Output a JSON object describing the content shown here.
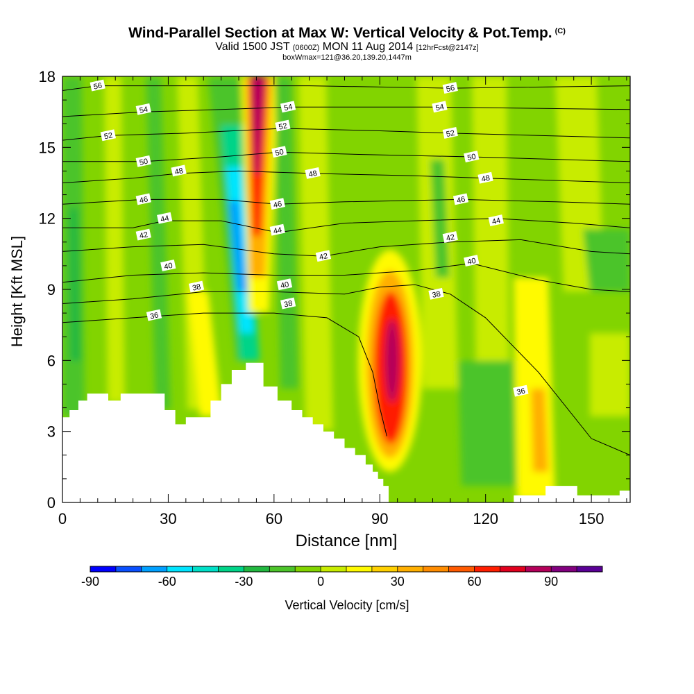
{
  "title": "Wind-Parallel Section at Max W: Vertical Velocity & Pot.Temp.",
  "title_mark": "(C)",
  "subtitle_main": "Valid 1500 JST",
  "subtitle_zulu": "(0600Z)",
  "subtitle_date": "MON 11 Aug 2014",
  "subtitle_fcst": "[12hrFcst@2147z]",
  "subtitle2": "boxWmax=121@36.20,139.20,1447m",
  "chart_data": {
    "type": "heatmap",
    "xlabel": "Distance [nm]",
    "ylabel": "Height [Kft MSL]",
    "xlim": [
      0,
      161
    ],
    "ylim": [
      0,
      18
    ],
    "x_ticks": [
      "0",
      "30",
      "60",
      "90",
      "120",
      "150"
    ],
    "x_tick_values": [
      0,
      30,
      60,
      90,
      120,
      150
    ],
    "y_ticks": [
      "0",
      "3",
      "6",
      "9",
      "12",
      "15",
      "18"
    ],
    "y_tick_values": [
      0,
      3,
      6,
      9,
      12,
      15,
      18
    ],
    "colorbar": {
      "label": "Vertical Velocity [cm/s]",
      "ticks": [
        "-90",
        "-60",
        "-30",
        "0",
        "30",
        "60",
        "90"
      ],
      "tick_values": [
        -90,
        -60,
        -30,
        0,
        30,
        60,
        90
      ],
      "min": -90,
      "max": 110,
      "step": 10,
      "colors": [
        "#0000ff",
        "#0a50ff",
        "#00a0ff",
        "#00e5ff",
        "#00e0c8",
        "#00d488",
        "#22b840",
        "#4cc42a",
        "#82d400",
        "#c8ec00",
        "#fffa00",
        "#ffd000",
        "#ffaf00",
        "#ff8c00",
        "#ff5a00",
        "#ff1e00",
        "#e1001e",
        "#b4005a",
        "#82007f",
        "#5a0096"
      ]
    },
    "terrain": [
      [
        0,
        3.6
      ],
      [
        2,
        3.6
      ],
      [
        2,
        3.9
      ],
      [
        4.5,
        3.9
      ],
      [
        4.5,
        4.3
      ],
      [
        7,
        4.3
      ],
      [
        7,
        4.6
      ],
      [
        13,
        4.6
      ],
      [
        13,
        4.3
      ],
      [
        16.5,
        4.3
      ],
      [
        16.5,
        4.6
      ],
      [
        29,
        4.6
      ],
      [
        29,
        3.9
      ],
      [
        32,
        3.9
      ],
      [
        32,
        3.3
      ],
      [
        35,
        3.3
      ],
      [
        35,
        3.6
      ],
      [
        42,
        3.6
      ],
      [
        42,
        4.3
      ],
      [
        45,
        4.3
      ],
      [
        45,
        5.0
      ],
      [
        48,
        5.0
      ],
      [
        48,
        5.6
      ],
      [
        52,
        5.6
      ],
      [
        52,
        5.9
      ],
      [
        57,
        5.9
      ],
      [
        57,
        4.9
      ],
      [
        61,
        4.9
      ],
      [
        61,
        4.3
      ],
      [
        65,
        4.3
      ],
      [
        65,
        3.9
      ],
      [
        68,
        3.9
      ],
      [
        68,
        3.6
      ],
      [
        71,
        3.6
      ],
      [
        71,
        3.3
      ],
      [
        74,
        3.3
      ],
      [
        74,
        3.0
      ],
      [
        77,
        3.0
      ],
      [
        77,
        2.7
      ],
      [
        80,
        2.7
      ],
      [
        80,
        2.3
      ],
      [
        83,
        2.3
      ],
      [
        83,
        2.0
      ],
      [
        86,
        2.0
      ],
      [
        86,
        1.6
      ],
      [
        88,
        1.6
      ],
      [
        88,
        1.3
      ],
      [
        89.5,
        1.3
      ],
      [
        89.5,
        1.0
      ],
      [
        91,
        1.0
      ],
      [
        91,
        0.7
      ],
      [
        92.5,
        0.7
      ],
      [
        92.5,
        0
      ],
      [
        0,
        0
      ]
    ],
    "terrain_right": [
      [
        128,
        0
      ],
      [
        128,
        0.3
      ],
      [
        137,
        0.3
      ],
      [
        137,
        0.7
      ],
      [
        146,
        0.7
      ],
      [
        146,
        0.3
      ],
      [
        158,
        0.3
      ],
      [
        158,
        0.5
      ],
      [
        161,
        0.5
      ],
      [
        161,
        0
      ]
    ],
    "isentrope_labels": [
      {
        "text": "56",
        "x": 10,
        "y": 17.6
      },
      {
        "text": "54",
        "x": 23,
        "y": 16.6
      },
      {
        "text": "52",
        "x": 13,
        "y": 15.5
      },
      {
        "text": "50",
        "x": 23,
        "y": 14.4
      },
      {
        "text": "48",
        "x": 33,
        "y": 14.0
      },
      {
        "text": "46",
        "x": 23,
        "y": 12.8
      },
      {
        "text": "44",
        "x": 29,
        "y": 12.0
      },
      {
        "text": "42",
        "x": 23,
        "y": 11.3
      },
      {
        "text": "40",
        "x": 30,
        "y": 10.0
      },
      {
        "text": "38",
        "x": 38,
        "y": 9.1
      },
      {
        "text": "36",
        "x": 26,
        "y": 7.9
      },
      {
        "text": "54",
        "x": 64,
        "y": 16.7
      },
      {
        "text": "52",
        "x": 62.5,
        "y": 15.9
      },
      {
        "text": "50",
        "x": 61.5,
        "y": 14.8
      },
      {
        "text": "48",
        "x": 71,
        "y": 13.9
      },
      {
        "text": "46",
        "x": 61,
        "y": 12.6
      },
      {
        "text": "44",
        "x": 61,
        "y": 11.5
      },
      {
        "text": "42",
        "x": 74,
        "y": 10.4
      },
      {
        "text": "40",
        "x": 63,
        "y": 9.2
      },
      {
        "text": "38",
        "x": 64,
        "y": 8.4
      },
      {
        "text": "56",
        "x": 110,
        "y": 17.5
      },
      {
        "text": "54",
        "x": 107,
        "y": 16.7
      },
      {
        "text": "52",
        "x": 110,
        "y": 15.6
      },
      {
        "text": "50",
        "x": 116,
        "y": 14.6
      },
      {
        "text": "48",
        "x": 120,
        "y": 13.7
      },
      {
        "text": "46",
        "x": 113,
        "y": 12.8
      },
      {
        "text": "44",
        "x": 123,
        "y": 11.9
      },
      {
        "text": "42",
        "x": 110,
        "y": 11.2
      },
      {
        "text": "40",
        "x": 116,
        "y": 10.2
      },
      {
        "text": "38",
        "x": 106,
        "y": 8.8
      },
      {
        "text": "36",
        "x": 130,
        "y": 4.7
      }
    ],
    "isentropes": [
      {
        "level": 36,
        "pts": [
          [
            0,
            7.6
          ],
          [
            20,
            7.8
          ],
          [
            40,
            8.0
          ],
          [
            60,
            8.0
          ],
          [
            75,
            7.8
          ],
          [
            84,
            7.0
          ],
          [
            88,
            5.5
          ],
          [
            90,
            4.0
          ],
          [
            92,
            2.8
          ]
        ]
      },
      {
        "level": 38,
        "pts": [
          [
            0,
            8.4
          ],
          [
            20,
            8.6
          ],
          [
            40,
            8.9
          ],
          [
            60,
            8.9
          ],
          [
            80,
            8.8
          ],
          [
            90,
            9.1
          ],
          [
            100,
            9.2
          ],
          [
            110,
            8.8
          ],
          [
            120,
            7.8
          ],
          [
            135,
            5.5
          ],
          [
            150,
            2.7
          ],
          [
            161,
            2.0
          ]
        ]
      },
      {
        "level": 40,
        "pts": [
          [
            0,
            9.3
          ],
          [
            20,
            9.6
          ],
          [
            40,
            9.7
          ],
          [
            60,
            9.6
          ],
          [
            80,
            9.6
          ],
          [
            100,
            9.8
          ],
          [
            116,
            10.1
          ],
          [
            135,
            9.4
          ],
          [
            150,
            9.0
          ],
          [
            161,
            8.9
          ]
        ]
      },
      {
        "level": 42,
        "pts": [
          [
            0,
            10.6
          ],
          [
            20,
            10.8
          ],
          [
            40,
            10.9
          ],
          [
            60,
            10.5
          ],
          [
            74,
            10.4
          ],
          [
            90,
            10.8
          ],
          [
            110,
            11.0
          ],
          [
            130,
            11.1
          ],
          [
            150,
            10.6
          ],
          [
            161,
            10.5
          ]
        ]
      },
      {
        "level": 44,
        "pts": [
          [
            0,
            11.6
          ],
          [
            20,
            11.6
          ],
          [
            29,
            11.9
          ],
          [
            45,
            11.9
          ],
          [
            61,
            11.4
          ],
          [
            80,
            11.8
          ],
          [
            100,
            11.9
          ],
          [
            123,
            12.0
          ],
          [
            145,
            11.8
          ],
          [
            161,
            11.6
          ]
        ]
      },
      {
        "level": 46,
        "pts": [
          [
            0,
            12.6
          ],
          [
            23,
            12.8
          ],
          [
            45,
            12.8
          ],
          [
            61,
            12.6
          ],
          [
            80,
            12.7
          ],
          [
            113,
            12.8
          ],
          [
            140,
            12.7
          ],
          [
            161,
            12.6
          ]
        ]
      },
      {
        "level": 48,
        "pts": [
          [
            0,
            13.5
          ],
          [
            20,
            13.7
          ],
          [
            33,
            13.9
          ],
          [
            50,
            14.0
          ],
          [
            71,
            13.9
          ],
          [
            100,
            13.8
          ],
          [
            120,
            13.7
          ],
          [
            161,
            13.5
          ]
        ]
      },
      {
        "level": 50,
        "pts": [
          [
            0,
            14.4
          ],
          [
            23,
            14.4
          ],
          [
            45,
            14.6
          ],
          [
            61.5,
            14.8
          ],
          [
            85,
            14.7
          ],
          [
            116,
            14.6
          ],
          [
            161,
            14.4
          ]
        ]
      },
      {
        "level": 52,
        "pts": [
          [
            0,
            15.3
          ],
          [
            13,
            15.5
          ],
          [
            35,
            15.6
          ],
          [
            62.5,
            15.8
          ],
          [
            90,
            15.7
          ],
          [
            110,
            15.6
          ],
          [
            161,
            15.4
          ]
        ]
      },
      {
        "level": 54,
        "pts": [
          [
            0,
            16.3
          ],
          [
            23,
            16.5
          ],
          [
            45,
            16.6
          ],
          [
            64,
            16.7
          ],
          [
            90,
            16.7
          ],
          [
            107,
            16.7
          ],
          [
            161,
            16.6
          ]
        ]
      },
      {
        "level": 56,
        "pts": [
          [
            0,
            17.4
          ],
          [
            10,
            17.6
          ],
          [
            40,
            17.6
          ],
          [
            70,
            17.6
          ],
          [
            110,
            17.5
          ],
          [
            161,
            17.6
          ]
        ]
      }
    ]
  }
}
